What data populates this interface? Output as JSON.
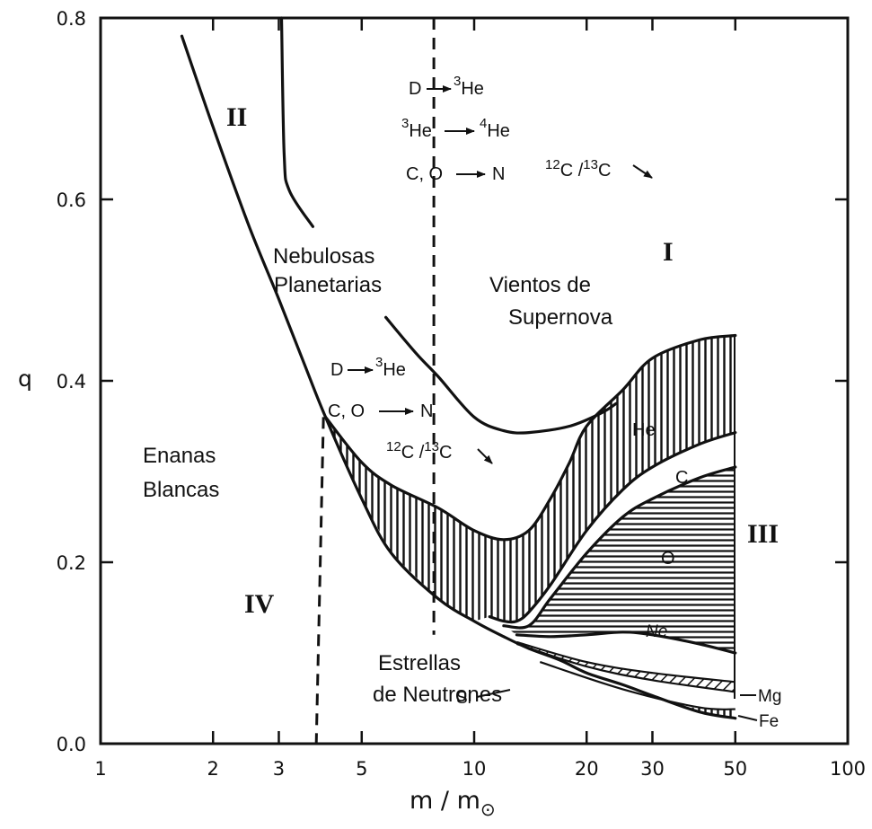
{
  "chart_data": {
    "type": "area",
    "xlabel_base": "m / m",
    "xlabel_sub": "⊙",
    "ylabel": "q",
    "x_scale": "log",
    "xlim": [
      1,
      100
    ],
    "ylim": [
      0.0,
      0.8
    ],
    "x_ticks": [
      {
        "value": 1,
        "label": "1"
      },
      {
        "value": 2,
        "label": "2"
      },
      {
        "value": 3,
        "label": "3"
      },
      {
        "value": 5,
        "label": "5"
      },
      {
        "value": 10,
        "label": "10"
      },
      {
        "value": 20,
        "label": "20"
      },
      {
        "value": 30,
        "label": "30"
      },
      {
        "value": 50,
        "label": "50"
      },
      {
        "value": 100,
        "label": "100"
      }
    ],
    "y_ticks": [
      {
        "value": 0.0,
        "label": "0.0"
      },
      {
        "value": 0.2,
        "label": "0.2"
      },
      {
        "value": 0.4,
        "label": "0.4"
      },
      {
        "value": 0.6,
        "label": "0.6"
      },
      {
        "value": 0.8,
        "label": "0.8"
      }
    ],
    "curves": {
      "remnant_boundary": [
        [
          1.65,
          0.78
        ],
        [
          2,
          0.68
        ],
        [
          2.5,
          0.57
        ],
        [
          3,
          0.49
        ],
        [
          3.5,
          0.42
        ],
        [
          4,
          0.36
        ],
        [
          5,
          0.27
        ],
        [
          6,
          0.21
        ],
        [
          8,
          0.16
        ],
        [
          10,
          0.135
        ],
        [
          12,
          0.118
        ],
        [
          14,
          0.105
        ],
        [
          17,
          0.092
        ],
        [
          20,
          0.078
        ],
        [
          25,
          0.065
        ],
        [
          30,
          0.053
        ],
        [
          40,
          0.035
        ],
        [
          50,
          0.028
        ]
      ],
      "planetary_nebula_edge": [
        [
          3.05,
          0.8
        ],
        [
          3.1,
          0.65
        ],
        [
          3.2,
          0.61
        ],
        [
          3.7,
          0.57
        ]
      ],
      "supernova_winds_lower": [
        [
          5.8,
          0.47
        ],
        [
          7,
          0.43
        ],
        [
          8,
          0.405
        ],
        [
          10,
          0.36
        ],
        [
          12,
          0.345
        ],
        [
          14,
          0.343
        ],
        [
          18,
          0.35
        ],
        [
          22,
          0.365
        ],
        [
          24,
          0.375
        ]
      ],
      "he_outer": [
        [
          4,
          0.36
        ],
        [
          5,
          0.31
        ],
        [
          6,
          0.285
        ],
        [
          8,
          0.26
        ],
        [
          10,
          0.235
        ],
        [
          12,
          0.225
        ],
        [
          14,
          0.235
        ],
        [
          16,
          0.27
        ],
        [
          18,
          0.31
        ],
        [
          20,
          0.35
        ],
        [
          25,
          0.39
        ],
        [
          30,
          0.425
        ],
        [
          40,
          0.445
        ],
        [
          50,
          0.45
        ]
      ],
      "he_inner": [
        [
          11,
          0.14
        ],
        [
          12,
          0.135
        ],
        [
          13,
          0.135
        ],
        [
          14,
          0.145
        ],
        [
          16,
          0.175
        ],
        [
          20,
          0.235
        ],
        [
          25,
          0.28
        ],
        [
          30,
          0.305
        ],
        [
          40,
          0.33
        ],
        [
          50,
          0.343
        ]
      ],
      "c_inner": [
        [
          12,
          0.13
        ],
        [
          14,
          0.13
        ],
        [
          16,
          0.16
        ],
        [
          20,
          0.21
        ],
        [
          25,
          0.25
        ],
        [
          30,
          0.27
        ],
        [
          40,
          0.293
        ],
        [
          50,
          0.305
        ]
      ],
      "o_inner": [
        [
          13,
          0.12
        ],
        [
          16,
          0.118
        ],
        [
          20,
          0.12
        ],
        [
          25,
          0.123
        ],
        [
          30,
          0.12
        ],
        [
          40,
          0.11
        ],
        [
          50,
          0.1
        ]
      ],
      "ne_inner": [
        [
          13,
          0.112
        ],
        [
          20,
          0.09
        ],
        [
          30,
          0.078
        ],
        [
          50,
          0.068
        ]
      ],
      "mg_inner": [
        [
          13,
          0.11
        ],
        [
          20,
          0.085
        ],
        [
          30,
          0.07
        ],
        [
          50,
          0.057
        ]
      ],
      "si_inner": [
        [
          15,
          0.09
        ],
        [
          25,
          0.06
        ],
        [
          40,
          0.04
        ],
        [
          50,
          0.038
        ]
      ]
    },
    "dashed_lines": [
      {
        "x": 7.8,
        "y_from": 0.12,
        "y_to": 0.8
      },
      {
        "x": 3.95,
        "y_from": 0.0,
        "y_to": 0.36
      }
    ],
    "regions": {
      "I": "I",
      "II": "II",
      "III": "III",
      "IV": "IV"
    },
    "region_labels": {
      "nebulosas": "Nebulosas",
      "planetarias": "Planetarias",
      "vientos": "Vientos de",
      "supernova": "Supernova",
      "enanas": "Enanas",
      "blancas": "Blancas",
      "estrellas": "Estrellas",
      "neutrones": "de Neutrones"
    },
    "shell_labels": {
      "he": "He",
      "c": "C",
      "o": "O",
      "ne": "Ne",
      "mg": "Mg",
      "si": "Si",
      "fe": "Fe"
    },
    "reactions_upper": {
      "r1a": "D",
      "r1b": "3",
      "r1c": "He",
      "r2a": "3",
      "r2b": "He",
      "r2c": "4",
      "r2d": "He",
      "r3a": "C, O",
      "r3b": "N",
      "r4a": "12",
      "r4b": "C /",
      "r4c": "13",
      "r4d": "C"
    },
    "reactions_lower": {
      "r1a": "D",
      "r1b": "3",
      "r1c": "He",
      "r2a": "C, O",
      "r2b": "N",
      "r3a": "12",
      "r3b": "C /",
      "r3c": "13",
      "r3d": "C"
    }
  }
}
